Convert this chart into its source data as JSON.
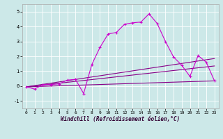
{
  "xlabel": "Windchill (Refroidissement éolien,°C)",
  "bg_color": "#cce8e8",
  "grid_color": "#ffffff",
  "line_color": "#cc00cc",
  "line_color2": "#880088",
  "xlim": [
    -0.5,
    23.5
  ],
  "ylim": [
    -1.5,
    5.5
  ],
  "yticks": [
    -1,
    0,
    1,
    2,
    3,
    4,
    5
  ],
  "xticks": [
    0,
    1,
    2,
    3,
    4,
    5,
    6,
    7,
    8,
    9,
    10,
    11,
    12,
    13,
    14,
    15,
    16,
    17,
    18,
    19,
    20,
    21,
    22,
    23
  ],
  "series1_x": [
    0,
    1,
    2,
    3,
    4,
    5,
    6,
    7,
    8,
    9,
    10,
    11,
    12,
    13,
    14,
    15,
    16,
    17,
    18,
    19,
    20,
    21,
    22,
    23
  ],
  "series1_y": [
    -0.05,
    -0.2,
    0.1,
    0.1,
    0.15,
    0.4,
    0.45,
    -0.5,
    1.45,
    2.6,
    3.5,
    3.6,
    4.15,
    4.25,
    4.3,
    4.85,
    4.2,
    3.0,
    1.95,
    1.4,
    0.65,
    2.05,
    1.6,
    0.35
  ],
  "series2_x": [
    0,
    23
  ],
  "series2_y": [
    -0.05,
    0.35
  ],
  "series3_x": [
    0,
    23
  ],
  "series3_y": [
    -0.05,
    1.35
  ],
  "series4_x": [
    0,
    23
  ],
  "series4_y": [
    -0.05,
    1.85
  ]
}
